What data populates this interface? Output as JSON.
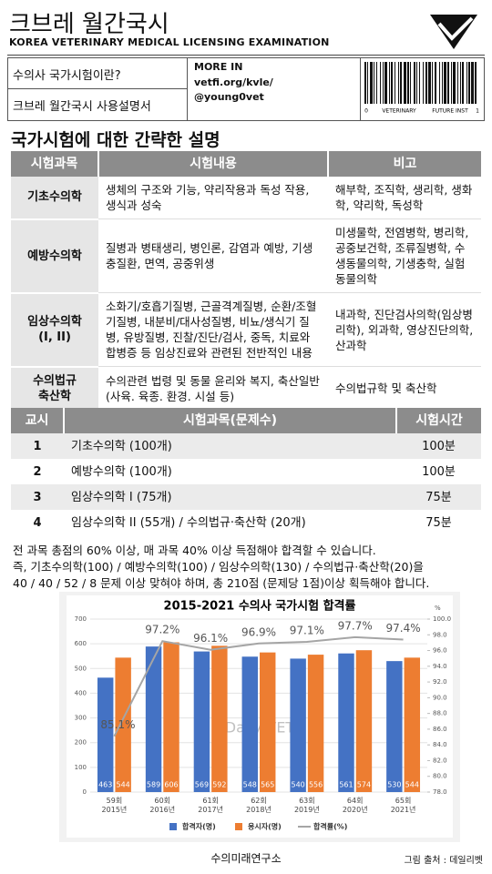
{
  "header": {
    "title": "크브레 월간국시",
    "subtitle": "KOREA VETERINARY MEDICAL LICENSING EXAMINATION"
  },
  "links": [
    "수의사 국가시험이란?",
    "크브레 월간국시 사용설명서"
  ],
  "more_in": {
    "label": "MORE IN",
    "lines": [
      "vetfi.org/kvle/",
      "@young0vet"
    ]
  },
  "barcode": {
    "texts": [
      "0",
      "VETERINARY",
      "FUTURE INST",
      "1"
    ]
  },
  "section_title": "국가시험에 대한 간략한 설명",
  "subjects_table": {
    "headers": [
      "시험과목",
      "시험내용",
      "비고"
    ],
    "rows": [
      [
        "기초수의학",
        "생체의 구조와 기능, 약리작용과 독성 작용, 생식과 성숙",
        "해부학, 조직학, 생리학, 생화학, 약리학, 독성학"
      ],
      [
        "예방수의학",
        "질병과 병태생리, 병인론, 감염과 예방, 기생충질환, 면역, 공중위생",
        "미생물학, 전염병학, 병리학, 공중보건학, 조류질병학, 수생동물의학, 기생충학, 실험동물의학"
      ],
      [
        "임상수의학\n(I, II)",
        "소화기/호흡기질병, 근골격계질병, 순환/조혈기질병, 내분비/대사성질병, 비뇨/생식기 질병, 유방질병, 진찰/진단/검사, 중독, 치료와 합병증 등 임상진료와 관련된 전반적인 내용",
        "내과학, 진단검사의학(임상병리학), 외과학, 영상진단의학, 산과학"
      ],
      [
        "수의법규\n축산학",
        "수의관련 법령 및 동물 윤리와 복지, 축산일반(사육. 육종. 환경. 시설 등)",
        "수의법규학 및 축산학"
      ]
    ]
  },
  "sessions_table": {
    "headers": [
      "교시",
      "시험과목(문제수)",
      "시험시간"
    ],
    "rows": [
      [
        "1",
        "기초수의학 (100개)",
        "100분"
      ],
      [
        "2",
        "예방수의학 (100개)",
        "100분"
      ],
      [
        "3",
        "임상수의학 I (75개)",
        "75분"
      ],
      [
        "4",
        "임상수의학 II (55개) / 수의법규·축산학 (20개)",
        "75분"
      ]
    ]
  },
  "notes": [
    "전 과목 총점의 60% 이상, 매 과목 40% 이상 득점해야 합격할 수 있습니다.",
    "즉, 기초수의학(100) / 예방수의학(100) / 임상수의학(130) / 수의법규·축산학(20)을",
    "40 / 40 / 52 / 8 문제 이상 맞혀야 하며, 총 210점 (문제당 1점)이상 획득해야 합니다."
  ],
  "chart_data": {
    "type": "bar",
    "title": "2015-2021 수의사 국가시험 합격률",
    "categories": [
      "59회\n2015년",
      "60회\n2016년",
      "61회\n2017년",
      "62회\n2018년",
      "63회\n2019년",
      "64회\n2020년",
      "65회\n2021년"
    ],
    "series": [
      {
        "name": "합격자(명)",
        "color": "#4472c4",
        "values": [
          463,
          589,
          569,
          548,
          540,
          561,
          530
        ]
      },
      {
        "name": "응시자(명)",
        "color": "#ed7d31",
        "values": [
          544,
          606,
          592,
          565,
          556,
          574,
          544
        ]
      },
      {
        "name": "합격률(%)",
        "type": "line",
        "axis": "y2",
        "color": "#a5a5a5",
        "values": [
          85.1,
          97.2,
          96.1,
          96.9,
          97.1,
          97.7,
          97.4
        ],
        "value_labels": [
          "85.1%",
          "97.2%",
          "96.1%",
          "96.9%",
          "97.1%",
          "97.7%",
          "97.4%"
        ]
      }
    ],
    "ylim": [
      0,
      700
    ],
    "yticks": [
      0,
      100,
      200,
      300,
      400,
      500,
      600,
      700
    ],
    "y2lim": [
      78,
      100
    ],
    "y2ticks": [
      {
        "value": 78,
        "label": "78.0"
      },
      {
        "value": 80,
        "label": "80.0"
      },
      {
        "value": 82,
        "label": "82.0"
      },
      {
        "value": 84,
        "label": "84.0"
      },
      {
        "value": 86,
        "label": "86.0"
      },
      {
        "value": 88,
        "label": "88.0"
      },
      {
        "value": 90,
        "label": "90.0"
      },
      {
        "value": 92,
        "label": "92.0"
      },
      {
        "value": 94,
        "label": "94.0"
      },
      {
        "value": 96,
        "label": "96.0"
      },
      {
        "value": 98,
        "label": "98.0"
      },
      {
        "value": 100,
        "label": "100.0"
      }
    ],
    "y2label": "%",
    "watermark": "Daily VET",
    "grid": true,
    "legend": "bottom"
  },
  "footer": {
    "caption": "수의미래연구소",
    "source": "그림 출처 : 데일리벳"
  }
}
